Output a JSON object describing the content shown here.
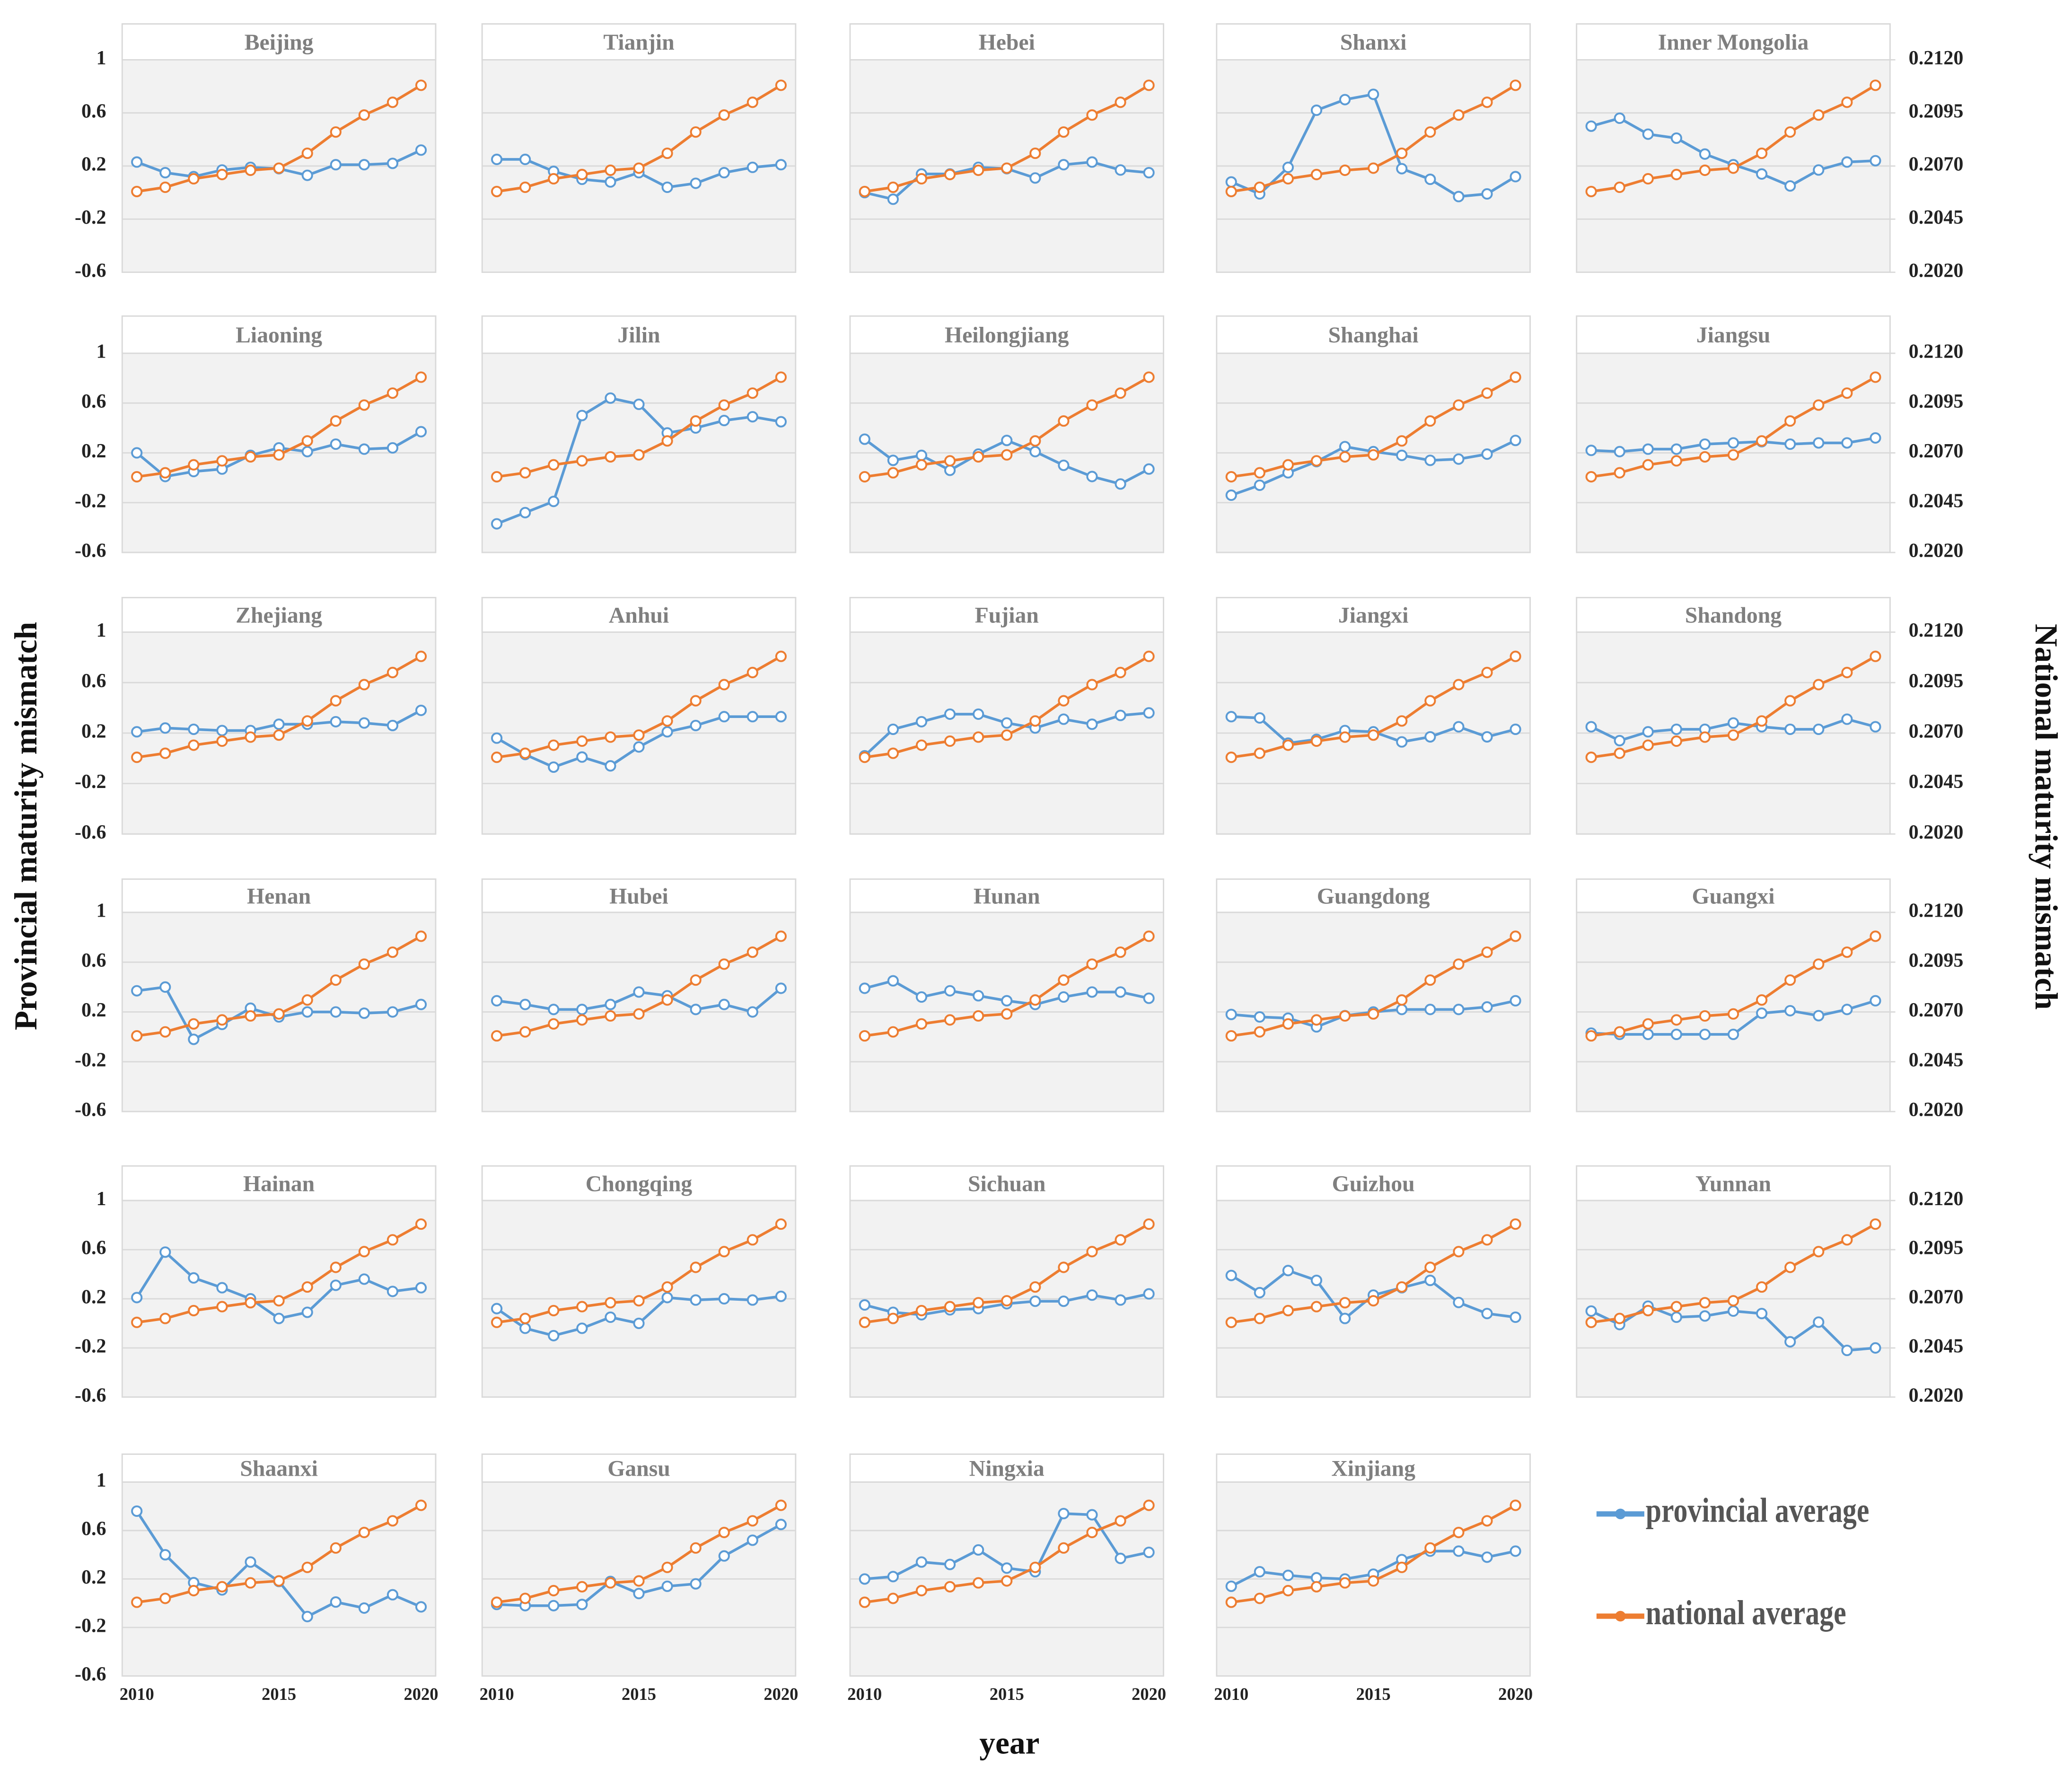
{
  "chart_data": {
    "type": "line",
    "xlabel": "year",
    "ylabel": "Provincial maturity mismatch",
    "y2label": "National maturity mismatch",
    "x": [
      2010,
      2011,
      2012,
      2013,
      2014,
      2015,
      2016,
      2017,
      2018,
      2019,
      2020
    ],
    "xlim": [
      2010,
      2020
    ],
    "xticks": [
      2010,
      2015,
      2020
    ],
    "ylim": [
      -0.6,
      1
    ],
    "yticks": [
      1,
      0.6,
      0.2,
      -0.2,
      -0.6
    ],
    "y2lim": [
      0.202,
      0.212
    ],
    "y2ticks": [
      {
        "value": 0.212,
        "label": "0.2120"
      },
      {
        "value": 0.2095,
        "label": "0.2095"
      },
      {
        "value": 0.207,
        "label": "0.2070"
      },
      {
        "value": 0.2045,
        "label": "0.2045"
      },
      {
        "value": 0.202,
        "label": "0.2020"
      }
    ],
    "grid": true,
    "series": [
      {
        "name": "provincial average",
        "color": "#5b9bd5"
      },
      {
        "name": "national average",
        "color": "#ed7d31",
        "axis": "y2",
        "values": [
          0.2058,
          0.206,
          0.2064,
          0.2066,
          0.2068,
          0.2069,
          0.2076,
          0.2086,
          0.2094,
          0.21,
          0.2108
        ]
      }
    ],
    "panels": [
      {
        "title": "Beijing",
        "values": [
          0.23,
          0.15,
          0.12,
          0.17,
          0.19,
          0.18,
          0.13,
          0.21,
          0.21,
          0.22,
          0.32
        ]
      },
      {
        "title": "Tianjin",
        "values": [
          0.25,
          0.25,
          0.16,
          0.1,
          0.08,
          0.15,
          0.04,
          0.07,
          0.15,
          0.19,
          0.21
        ]
      },
      {
        "title": "Hebei",
        "values": [
          0.0,
          -0.05,
          0.14,
          0.14,
          0.19,
          0.18,
          0.11,
          0.21,
          0.23,
          0.17,
          0.15
        ]
      },
      {
        "title": "Shanxi",
        "values": [
          0.08,
          -0.01,
          0.19,
          0.62,
          0.7,
          0.74,
          0.18,
          0.1,
          -0.03,
          -0.01,
          0.12
        ]
      },
      {
        "title": "Inner Mongolia",
        "values": [
          0.5,
          0.56,
          0.44,
          0.41,
          0.29,
          0.21,
          0.14,
          0.05,
          0.17,
          0.23,
          0.24
        ]
      },
      {
        "title": "Liaoning",
        "values": [
          0.2,
          0.01,
          0.05,
          0.07,
          0.18,
          0.24,
          0.21,
          0.27,
          0.23,
          0.24,
          0.37
        ]
      },
      {
        "title": "Jilin",
        "values": [
          -0.37,
          -0.28,
          -0.19,
          0.5,
          0.64,
          0.59,
          0.36,
          0.4,
          0.46,
          0.49,
          0.45
        ]
      },
      {
        "title": "Heilongjiang",
        "values": [
          0.31,
          0.14,
          0.18,
          0.06,
          0.19,
          0.3,
          0.21,
          0.1,
          0.01,
          -0.05,
          0.07
        ]
      },
      {
        "title": "Shanghai",
        "values": [
          -0.14,
          -0.06,
          0.04,
          0.13,
          0.25,
          0.21,
          0.18,
          0.14,
          0.15,
          0.19,
          0.3
        ]
      },
      {
        "title": "Jiangsu",
        "values": [
          0.22,
          0.21,
          0.23,
          0.23,
          0.27,
          0.28,
          0.29,
          0.27,
          0.28,
          0.28,
          0.32
        ]
      },
      {
        "title": "Zhejiang",
        "values": [
          0.21,
          0.24,
          0.23,
          0.22,
          0.22,
          0.27,
          0.27,
          0.29,
          0.28,
          0.26,
          0.38
        ]
      },
      {
        "title": "Anhui",
        "values": [
          0.16,
          0.03,
          -0.07,
          0.01,
          -0.06,
          0.09,
          0.21,
          0.26,
          0.33,
          0.33,
          0.33
        ]
      },
      {
        "title": "Fujian",
        "values": [
          0.02,
          0.23,
          0.29,
          0.35,
          0.35,
          0.28,
          0.24,
          0.31,
          0.27,
          0.34,
          0.36
        ]
      },
      {
        "title": "Jiangxi",
        "values": [
          0.33,
          0.32,
          0.12,
          0.15,
          0.22,
          0.21,
          0.13,
          0.17,
          0.25,
          0.17,
          0.23
        ]
      },
      {
        "title": "Shandong",
        "values": [
          0.25,
          0.14,
          0.21,
          0.23,
          0.23,
          0.28,
          0.25,
          0.23,
          0.23,
          0.31,
          0.25
        ]
      },
      {
        "title": "Henan",
        "values": [
          0.37,
          0.4,
          -0.02,
          0.1,
          0.23,
          0.16,
          0.2,
          0.2,
          0.19,
          0.2,
          0.26
        ]
      },
      {
        "title": "Hubei",
        "values": [
          0.29,
          0.26,
          0.22,
          0.22,
          0.26,
          0.36,
          0.33,
          0.22,
          0.26,
          0.2,
          0.39
        ]
      },
      {
        "title": "Hunan",
        "values": [
          0.39,
          0.45,
          0.32,
          0.37,
          0.33,
          0.29,
          0.26,
          0.32,
          0.36,
          0.36,
          0.31
        ]
      },
      {
        "title": "Guangdong",
        "values": [
          0.18,
          0.16,
          0.15,
          0.08,
          0.17,
          0.2,
          0.22,
          0.22,
          0.22,
          0.24,
          0.29
        ]
      },
      {
        "title": "Guangxi",
        "values": [
          0.03,
          0.02,
          0.02,
          0.02,
          0.02,
          0.02,
          0.19,
          0.21,
          0.17,
          0.22,
          0.29
        ]
      },
      {
        "title": "Hainan",
        "values": [
          0.21,
          0.58,
          0.37,
          0.29,
          0.2,
          0.04,
          0.09,
          0.31,
          0.36,
          0.26,
          0.29
        ]
      },
      {
        "title": "Chongqing",
        "values": [
          0.12,
          -0.04,
          -0.1,
          -0.04,
          0.05,
          0.0,
          0.21,
          0.19,
          0.2,
          0.19,
          0.22
        ]
      },
      {
        "title": "Sichuan",
        "values": [
          0.15,
          0.09,
          0.07,
          0.11,
          0.12,
          0.16,
          0.18,
          0.18,
          0.23,
          0.19,
          0.24
        ]
      },
      {
        "title": "Guizhou",
        "values": [
          0.39,
          0.25,
          0.43,
          0.35,
          0.04,
          0.23,
          0.29,
          0.35,
          0.17,
          0.08,
          0.05
        ]
      },
      {
        "title": "Yunnan",
        "values": [
          0.1,
          -0.01,
          0.14,
          0.05,
          0.06,
          0.1,
          0.08,
          -0.15,
          0.01,
          -0.22,
          -0.2
        ]
      },
      {
        "title": "Shaanxi",
        "values": [
          0.76,
          0.4,
          0.17,
          0.11,
          0.34,
          0.18,
          -0.11,
          0.01,
          -0.04,
          0.07,
          -0.03
        ]
      },
      {
        "title": "Gansu",
        "values": [
          -0.01,
          -0.02,
          -0.02,
          -0.01,
          0.18,
          0.08,
          0.14,
          0.16,
          0.39,
          0.52,
          0.65
        ]
      },
      {
        "title": "Ningxia",
        "values": [
          0.2,
          0.22,
          0.34,
          0.32,
          0.44,
          0.29,
          0.26,
          0.74,
          0.73,
          0.37,
          0.42
        ]
      },
      {
        "title": "Xinjiang",
        "values": [
          0.14,
          0.26,
          0.23,
          0.21,
          0.2,
          0.24,
          0.36,
          0.43,
          0.43,
          0.38,
          0.43
        ]
      }
    ]
  }
}
